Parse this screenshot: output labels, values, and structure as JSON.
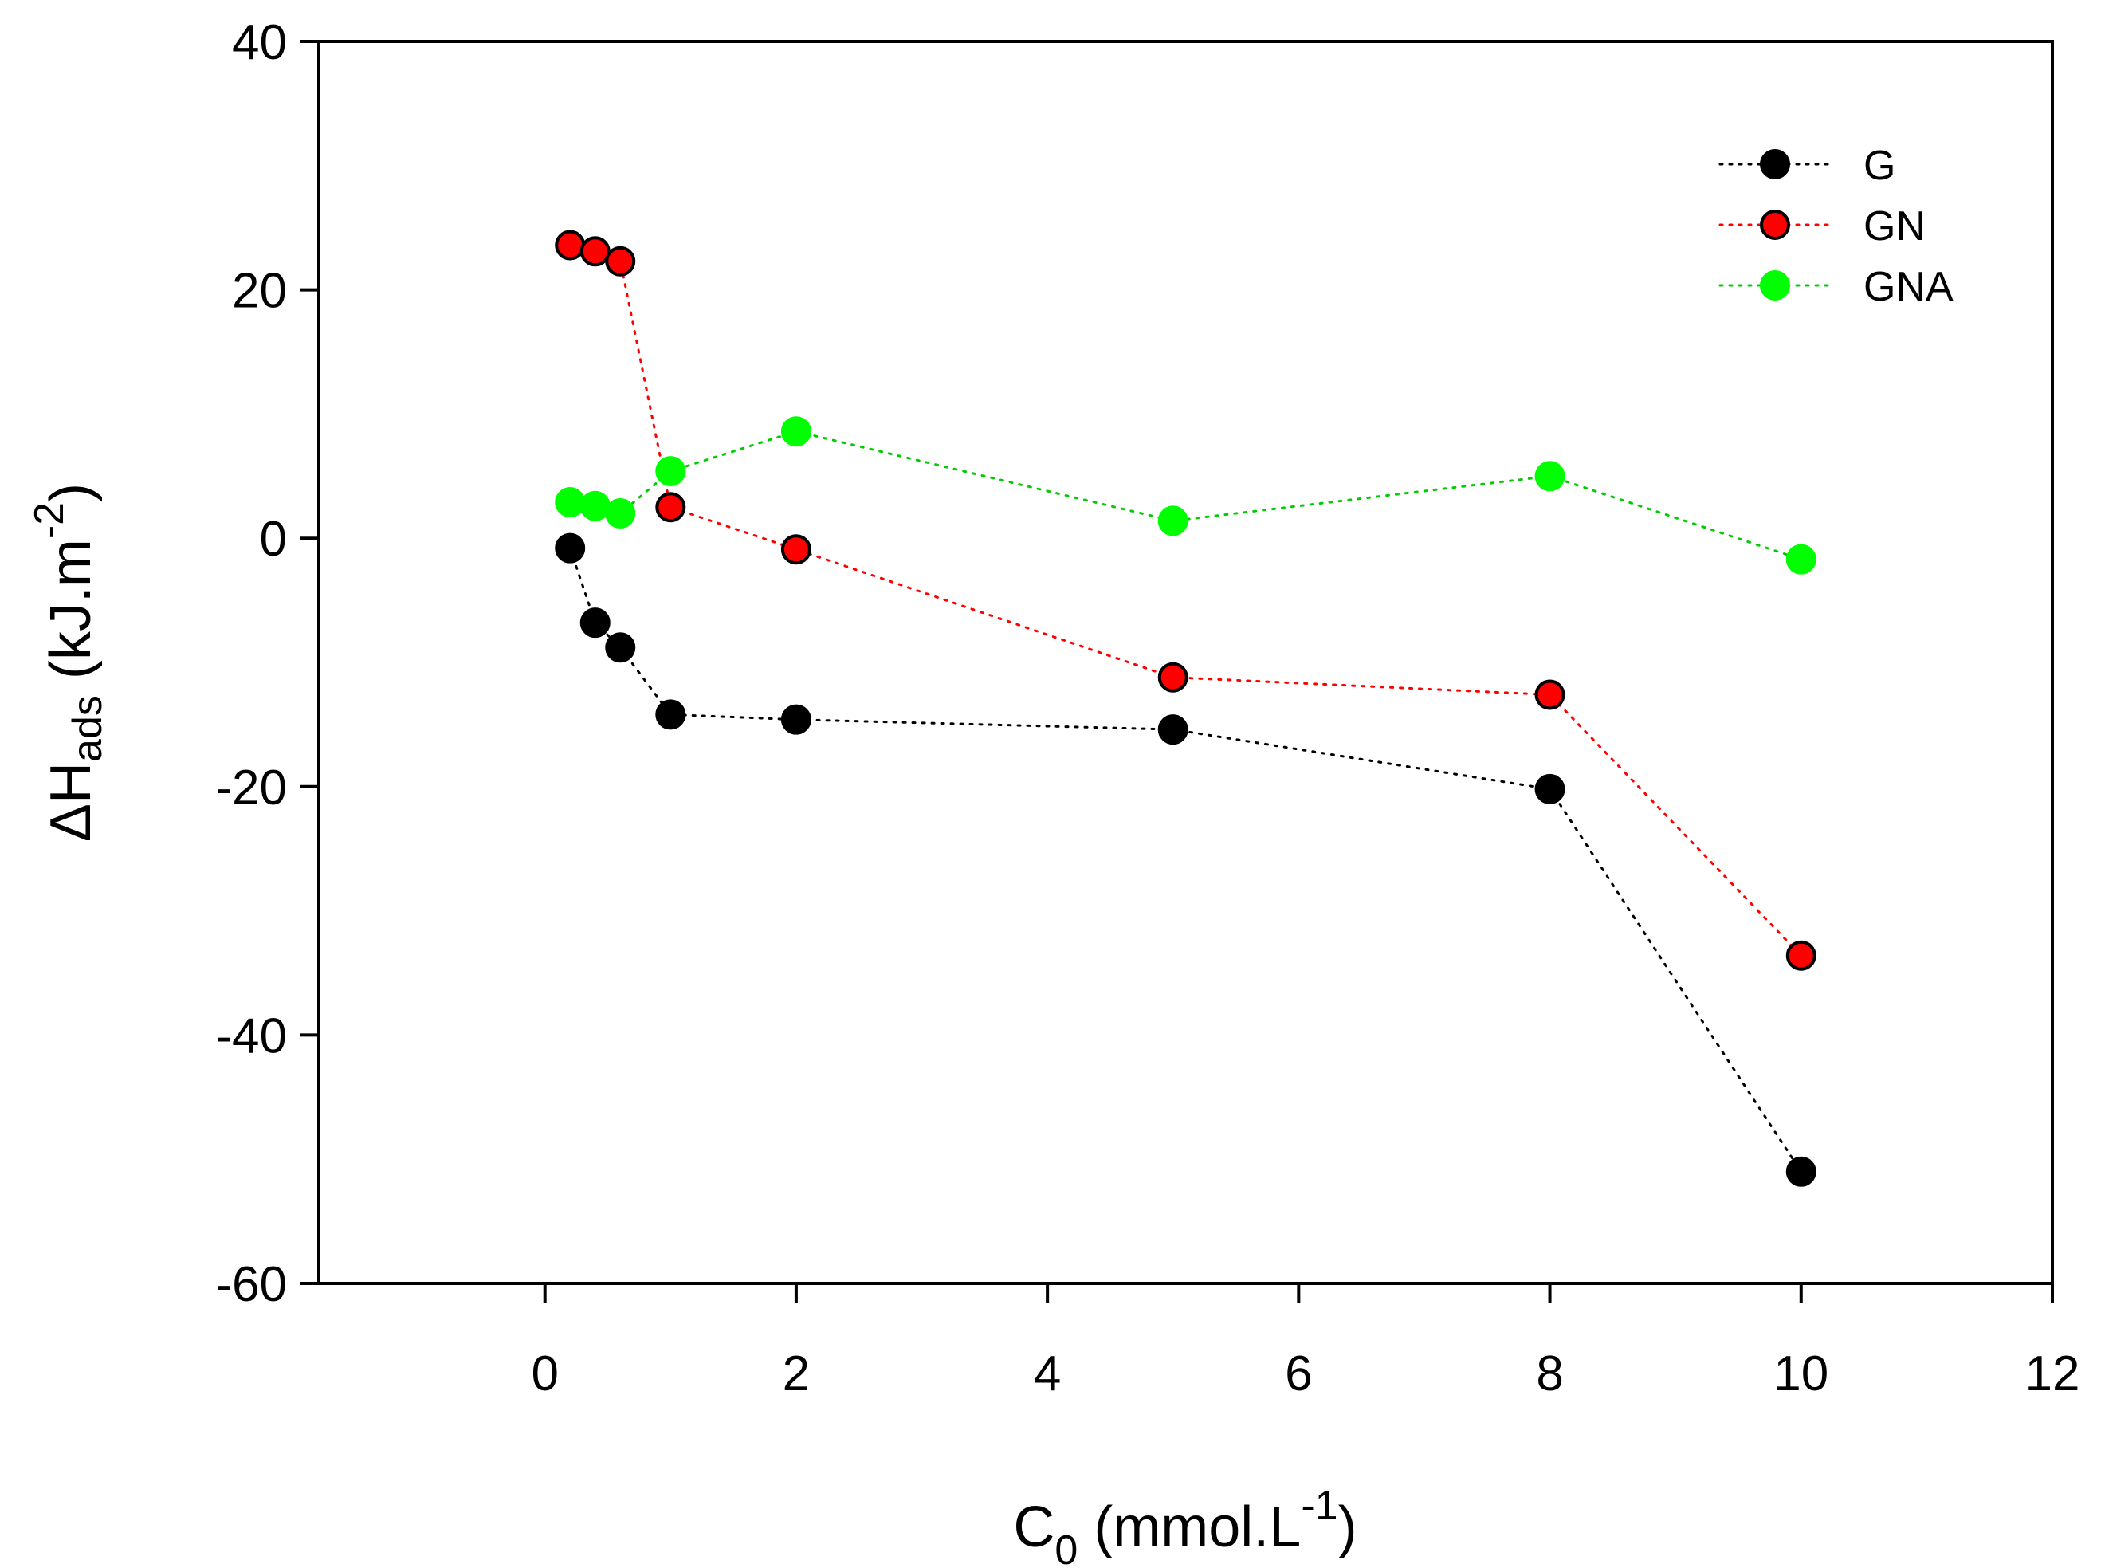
{
  "chart_data": {
    "type": "scatter",
    "title": "",
    "xlabel": {
      "base": "C",
      "subscript": "0",
      "unit_open": " (mmol.L",
      "superscript": "-1",
      "unit_close": ")"
    },
    "ylabel": {
      "symbol": "ΔH",
      "subscript": "ads",
      "unit_open": " (kJ.m",
      "superscript": "-2",
      "unit_close": ")"
    },
    "xlim": [
      -1.8,
      12
    ],
    "ylim": [
      -60,
      40
    ],
    "xticks": [
      0,
      2,
      4,
      6,
      8,
      10,
      12
    ],
    "yticks": [
      -60,
      -40,
      -20,
      0,
      20,
      40
    ],
    "grid": false,
    "legend_position": "top-right",
    "line_style": "dotted",
    "series": [
      {
        "name": "G",
        "color": "#000000",
        "marker_edge": "#000000",
        "line_color": "#000000",
        "x": [
          0.2,
          0.4,
          0.6,
          1,
          2,
          5,
          8,
          10
        ],
        "y": [
          -0.8,
          -6.8,
          -8.8,
          -14.2,
          -14.6,
          -15.4,
          -20.2,
          -51.0
        ]
      },
      {
        "name": "GN",
        "color": "#ff0000",
        "marker_edge": "#000000",
        "line_color": "#ff0000",
        "x": [
          0.2,
          0.4,
          0.6,
          1,
          2,
          5,
          8,
          10
        ],
        "y": [
          23.6,
          23.1,
          22.3,
          2.5,
          -0.9,
          -11.2,
          -12.6,
          -33.6
        ]
      },
      {
        "name": "GNA",
        "color": "#00ff00",
        "marker_edge": "#00ff00",
        "line_color": "#00cc00",
        "x": [
          0.2,
          0.4,
          0.6,
          1,
          2,
          5,
          8,
          10
        ],
        "y": [
          2.9,
          2.6,
          2.0,
          5.4,
          8.6,
          1.4,
          5.0,
          -1.7
        ]
      }
    ]
  }
}
